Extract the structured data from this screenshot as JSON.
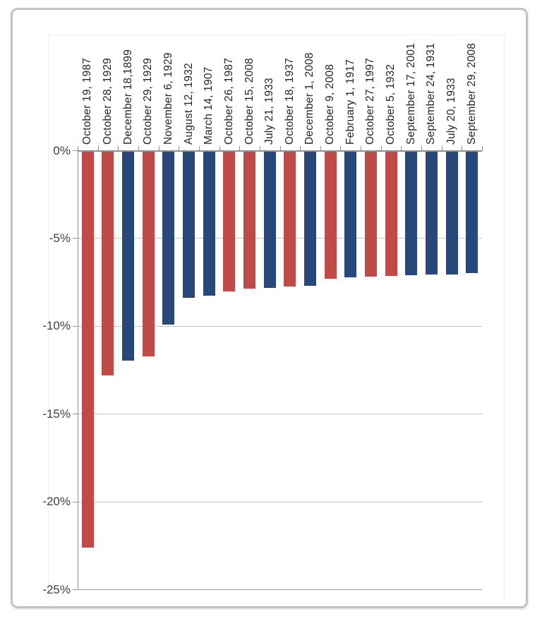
{
  "chart_data": {
    "type": "bar",
    "title": "",
    "xlabel": "",
    "ylabel": "",
    "ylim": [
      -25,
      0
    ],
    "grid": true,
    "legend": false,
    "bar_orientation": "vertical-negative",
    "categories": [
      "October 19, 1987",
      "October 28, 1929",
      "December 18,1899",
      "October 29, 1929",
      "November 6, 1929",
      "August 12, 1932",
      "March 14, 1907",
      "October 26, 1987",
      "October 15, 2008",
      "July 21, 1933",
      "October 18, 1937",
      "December 1, 2008",
      "October 9, 2008",
      "February 1, 1917",
      "October 27, 1997",
      "October 5, 1932",
      "September 17, 2001",
      "September 24, 1931",
      "July 20, 1933",
      "September 29, 2008"
    ],
    "values": [
      -22.61,
      -12.82,
      -11.99,
      -11.73,
      -9.92,
      -8.4,
      -8.29,
      -8.04,
      -7.87,
      -7.84,
      -7.75,
      -7.7,
      -7.33,
      -7.24,
      -7.18,
      -7.15,
      -7.13,
      -7.07,
      -7.07,
      -6.98
    ],
    "bar_color_keys": [
      "red",
      "red",
      "blue",
      "red",
      "blue",
      "blue",
      "blue",
      "red",
      "red",
      "blue",
      "red",
      "blue",
      "red",
      "blue",
      "red",
      "red",
      "blue",
      "blue",
      "blue",
      "blue"
    ],
    "colors": {
      "red": "#be4b48",
      "blue": "#274878",
      "gridline": "#c6c6c6",
      "axis": "#8f8f8f",
      "label_text": "#262626",
      "tick_text": "#3a3f46"
    },
    "yticks": [
      {
        "label": "0%",
        "value": 0
      },
      {
        "label": "-5%",
        "value": -5
      },
      {
        "label": "-10%",
        "value": -10
      },
      {
        "label": "-15%",
        "value": -15
      },
      {
        "label": "-20%",
        "value": -20
      },
      {
        "label": "-25%",
        "value": -25
      }
    ]
  }
}
